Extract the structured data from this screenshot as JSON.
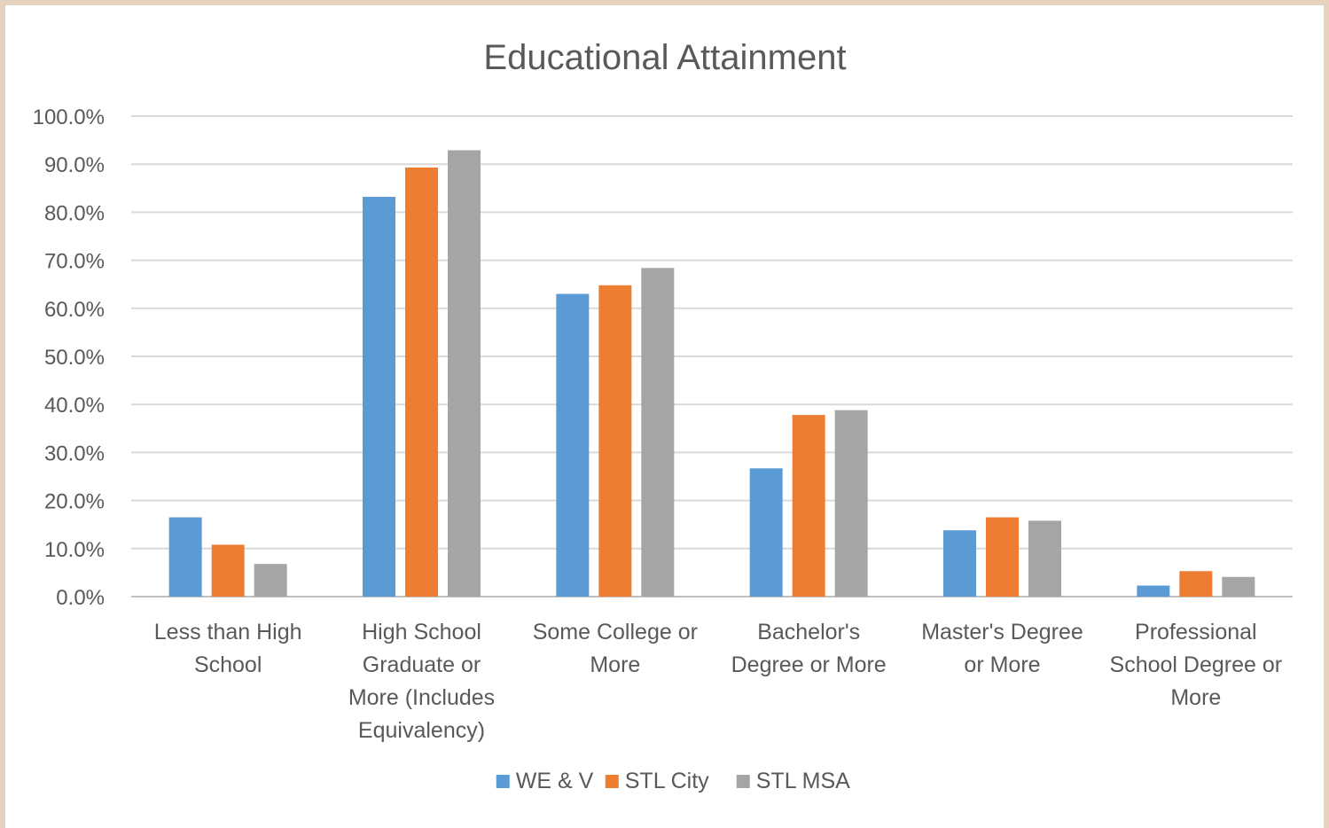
{
  "chart_data": {
    "type": "bar",
    "title": "Educational Attainment",
    "xlabel": "",
    "ylabel": "",
    "categories": [
      "Less than High School",
      "High School Graduate or More (Includes Equivalency)",
      "Some College or More",
      "Bachelor's Degree or More",
      "Master's Degree or More",
      "Professional School Degree or More"
    ],
    "category_lines": [
      [
        "Less than High",
        "School"
      ],
      [
        "High School",
        "Graduate or",
        "More (Includes",
        "Equivalency)"
      ],
      [
        "Some College or",
        "More"
      ],
      [
        "Bachelor's",
        "Degree or More"
      ],
      [
        "Master's Degree",
        "or More"
      ],
      [
        "Professional",
        "School Degree or",
        "More"
      ]
    ],
    "series": [
      {
        "name": "WE & V",
        "color": "#5b9bd5",
        "values": [
          16.5,
          83.2,
          63.0,
          26.7,
          13.8,
          2.3
        ]
      },
      {
        "name": "STL City",
        "color": "#ed7d31",
        "values": [
          10.8,
          89.3,
          64.8,
          37.8,
          16.5,
          5.3
        ]
      },
      {
        "name": "STL MSA",
        "color": "#a5a5a5",
        "values": [
          6.8,
          92.9,
          68.4,
          38.8,
          15.8,
          4.1
        ]
      }
    ],
    "ylim": [
      0,
      100
    ],
    "yticks": [
      "0.0%",
      "10.0%",
      "20.0%",
      "30.0%",
      "40.0%",
      "50.0%",
      "60.0%",
      "70.0%",
      "80.0%",
      "90.0%",
      "100.0%"
    ],
    "grid": true,
    "legend_position": "bottom"
  }
}
